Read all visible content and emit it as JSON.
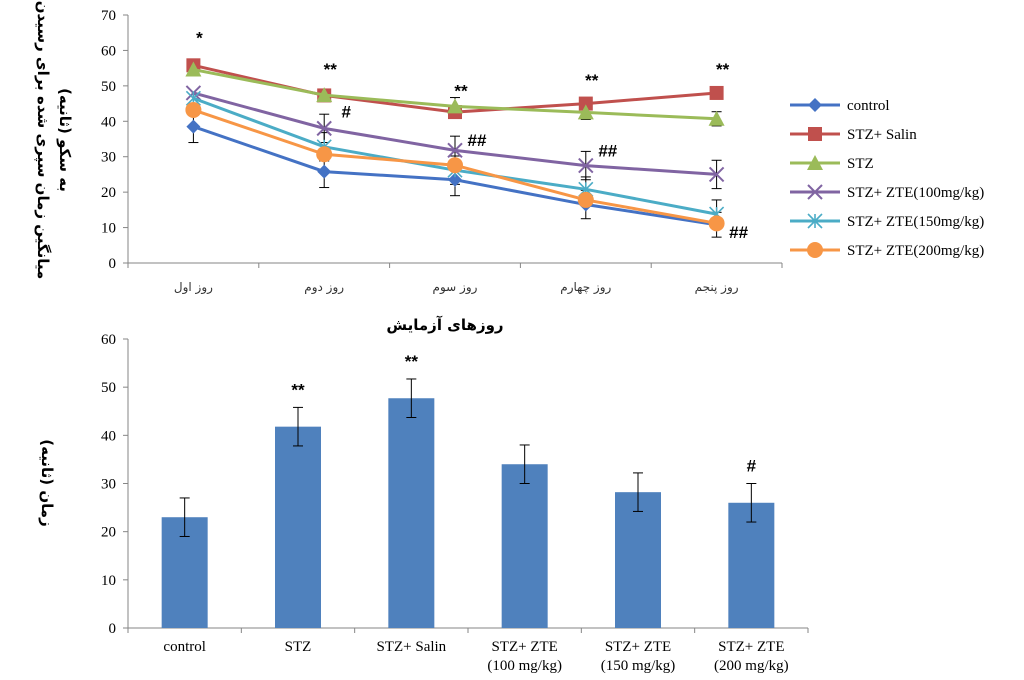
{
  "chart_data": [
    {
      "type": "line",
      "ylabel_line1": "میانگین زمان سپری شده برای رسیدن",
      "ylabel_line2": "به سکو (ثانیه)",
      "xlabel": "روزهای آزمایش",
      "ylim": [
        0,
        70
      ],
      "yticks": [
        0,
        10,
        20,
        30,
        40,
        50,
        60,
        70
      ],
      "categories": [
        "روز اول",
        "روز دوم",
        "روز سوم",
        "روز چهارم",
        "روز پنجم"
      ],
      "legend_position": "right",
      "series": [
        {
          "name": "control",
          "color": "#4472C4",
          "marker": "diamond",
          "values": [
            38.5,
            25.8,
            23.5,
            16.5,
            10.8
          ],
          "errors": [
            4.5,
            4.5,
            4.5,
            4,
            3.5
          ]
        },
        {
          "name": "STZ+ Salin",
          "color": "#C0504D",
          "marker": "square",
          "values": [
            55.8,
            47.3,
            42.6,
            45,
            48
          ],
          "errors": [
            0,
            0,
            0,
            0,
            0
          ]
        },
        {
          "name": "STZ",
          "color": "#9BBB59",
          "marker": "triangle",
          "values": [
            54.6,
            47.4,
            44.2,
            42.5,
            40.7
          ],
          "errors": [
            0,
            0,
            2.5,
            2,
            2
          ]
        },
        {
          "name": "STZ+ ZTE(100mg/kg)",
          "color": "#8064A2",
          "marker": "x",
          "values": [
            48,
            38,
            31.8,
            27.5,
            25
          ],
          "errors": [
            0,
            4,
            4,
            4,
            4
          ]
        },
        {
          "name": "STZ+ ZTE(150mg/kg)",
          "color": "#4BACC6",
          "marker": "star",
          "values": [
            46.5,
            32.8,
            26.2,
            20.8,
            13.8
          ],
          "errors": [
            0,
            4,
            4,
            3.5,
            4
          ]
        },
        {
          "name": "STZ+ ZTE(200mg/kg)",
          "color": "#F79646",
          "marker": "circle",
          "values": [
            43.2,
            30.7,
            27.6,
            17.8,
            11.2
          ],
          "errors": [
            0,
            0,
            0,
            0,
            0
          ]
        }
      ],
      "annotations": [
        {
          "text": "*",
          "x": 0,
          "y": 62
        },
        {
          "text": "**",
          "x": 1,
          "y": 53
        },
        {
          "text": "#",
          "x": 1,
          "y": 41
        },
        {
          "text": "**",
          "x": 2,
          "y": 47
        },
        {
          "text": "##",
          "x": 2,
          "y": 33
        },
        {
          "text": "**",
          "x": 3,
          "y": 50
        },
        {
          "text": "##",
          "x": 3,
          "y": 30
        },
        {
          "text": "**",
          "x": 4,
          "y": 53
        },
        {
          "text": "##",
          "x": 4,
          "y": 7
        }
      ]
    },
    {
      "type": "bar",
      "ylabel": "زمان (ثانیه)",
      "ylim": [
        0,
        60
      ],
      "yticks": [
        0,
        10,
        20,
        30,
        40,
        50,
        60
      ],
      "color": "#4F81BD",
      "categories": [
        {
          "line1": "control",
          "line2": ""
        },
        {
          "line1": "STZ",
          "line2": ""
        },
        {
          "line1": "STZ+ Salin",
          "line2": ""
        },
        {
          "line1": "STZ+ ZTE",
          "line2": "(100 mg/kg)"
        },
        {
          "line1": "STZ+ ZTE",
          "line2": "(150 mg/kg)"
        },
        {
          "line1": "STZ+ ZTE",
          "line2": "(200 mg/kg)"
        }
      ],
      "values": [
        23,
        41.8,
        47.7,
        34,
        28.2,
        26
      ],
      "errors": [
        4,
        4,
        4,
        4,
        4,
        4
      ],
      "annotations": [
        "",
        "**",
        "**",
        "",
        "",
        "#"
      ]
    }
  ]
}
